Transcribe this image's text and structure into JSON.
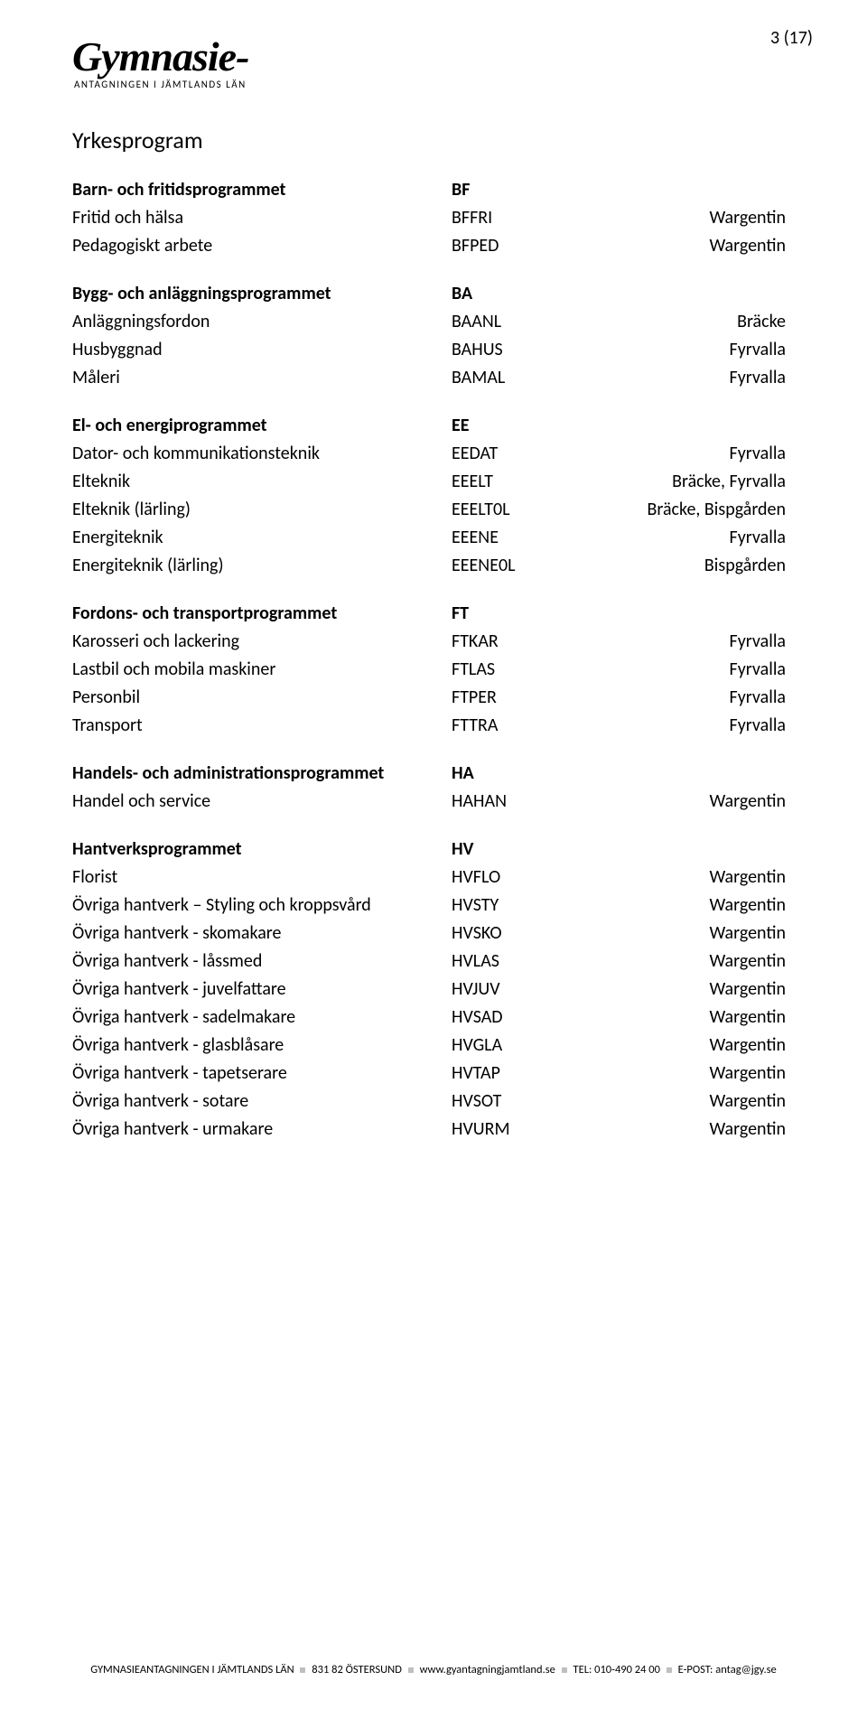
{
  "page_number": "3 (17)",
  "logo": {
    "main": "Gymnasie-",
    "sub": "ANTAGNINGEN I JÄMTLANDS LÄN"
  },
  "section_title": "Yrkesprogram",
  "colors": {
    "text": "#000000",
    "background": "#ffffff"
  },
  "typography": {
    "body_fontsize_pt": 15,
    "heading_fontsize_pt": 20
  },
  "groups": [
    {
      "header": {
        "name": "Barn- och fritidsprogrammet",
        "code": "BF",
        "loc": ""
      },
      "rows": [
        {
          "name": "Fritid och hälsa",
          "code": "BFFRI",
          "loc": "Wargentin"
        },
        {
          "name": "Pedagogiskt arbete",
          "code": "BFPED",
          "loc": "Wargentin"
        }
      ]
    },
    {
      "header": {
        "name": "Bygg- och anläggningsprogrammet",
        "code": "BA",
        "loc": ""
      },
      "rows": [
        {
          "name": "Anläggningsfordon",
          "code": "BAANL",
          "loc": "Bräcke"
        },
        {
          "name": "Husbyggnad",
          "code": "BAHUS",
          "loc": "Fyrvalla"
        },
        {
          "name": "Måleri",
          "code": "BAMAL",
          "loc": "Fyrvalla"
        }
      ]
    },
    {
      "header": {
        "name": "El- och energiprogrammet",
        "code": "EE",
        "loc": ""
      },
      "rows": [
        {
          "name": "Dator- och kommunikationsteknik",
          "code": "EEDAT",
          "loc": "Fyrvalla"
        },
        {
          "name": "Elteknik",
          "code": "EEELT",
          "loc": "Bräcke, Fyrvalla"
        },
        {
          "name": "Elteknik (lärling)",
          "code": "EEELT0L",
          "loc": "Bräcke, Bispgården"
        },
        {
          "name": "Energiteknik",
          "code": "EEENE",
          "loc": "Fyrvalla"
        },
        {
          "name": "Energiteknik (lärling)",
          "code": "EEENE0L",
          "loc": "Bispgården"
        }
      ]
    },
    {
      "header": {
        "name": "Fordons- och transportprogrammet",
        "code": "FT",
        "loc": ""
      },
      "rows": [
        {
          "name": "Karosseri och lackering",
          "code": "FTKAR",
          "loc": "Fyrvalla"
        },
        {
          "name": "Lastbil och mobila maskiner",
          "code": "FTLAS",
          "loc": "Fyrvalla"
        },
        {
          "name": "Personbil",
          "code": "FTPER",
          "loc": "Fyrvalla"
        },
        {
          "name": "Transport",
          "code": "FTTRA",
          "loc": "Fyrvalla"
        }
      ]
    },
    {
      "header": {
        "name": "Handels- och administrationsprogrammet",
        "code": "HA",
        "loc": ""
      },
      "rows": [
        {
          "name": "Handel och service",
          "code": "HAHAN",
          "loc": "Wargentin"
        }
      ]
    },
    {
      "header": {
        "name": "Hantverksprogrammet",
        "code": "HV",
        "loc": ""
      },
      "rows": [
        {
          "name": "Florist",
          "code": "HVFLO",
          "loc": "Wargentin"
        },
        {
          "name": "Övriga hantverk – Styling och kroppsvård",
          "code": "HVSTY",
          "loc": "Wargentin"
        },
        {
          "name": "Övriga hantverk - skomakare",
          "code": "HVSKO",
          "loc": "Wargentin"
        },
        {
          "name": "Övriga hantverk - låssmed",
          "code": "HVLAS",
          "loc": "Wargentin"
        },
        {
          "name": "Övriga hantverk - juvelfattare",
          "code": "HVJUV",
          "loc": "Wargentin"
        },
        {
          "name": "Övriga hantverk - sadelmakare",
          "code": "HVSAD",
          "loc": "Wargentin"
        },
        {
          "name": "Övriga hantverk - glasblåsare",
          "code": "HVGLA",
          "loc": "Wargentin"
        },
        {
          "name": "Övriga hantverk - tapetserare",
          "code": "HVTAP",
          "loc": "Wargentin"
        },
        {
          "name": "Övriga hantverk - sotare",
          "code": "HVSOT",
          "loc": "Wargentin"
        },
        {
          "name": "Övriga hantverk - urmakare",
          "code": "HVURM",
          "loc": "Wargentin"
        }
      ]
    }
  ],
  "footer": {
    "org": "GYMNASIEANTAGNINGEN I JÄMTLANDS LÄN",
    "address": "831 82 ÖSTERSUND",
    "web": "www.gyantagningjamtland.se",
    "tel": "TEL: 010-490 24 00",
    "email": "E-POST: antag@jgy.se"
  }
}
